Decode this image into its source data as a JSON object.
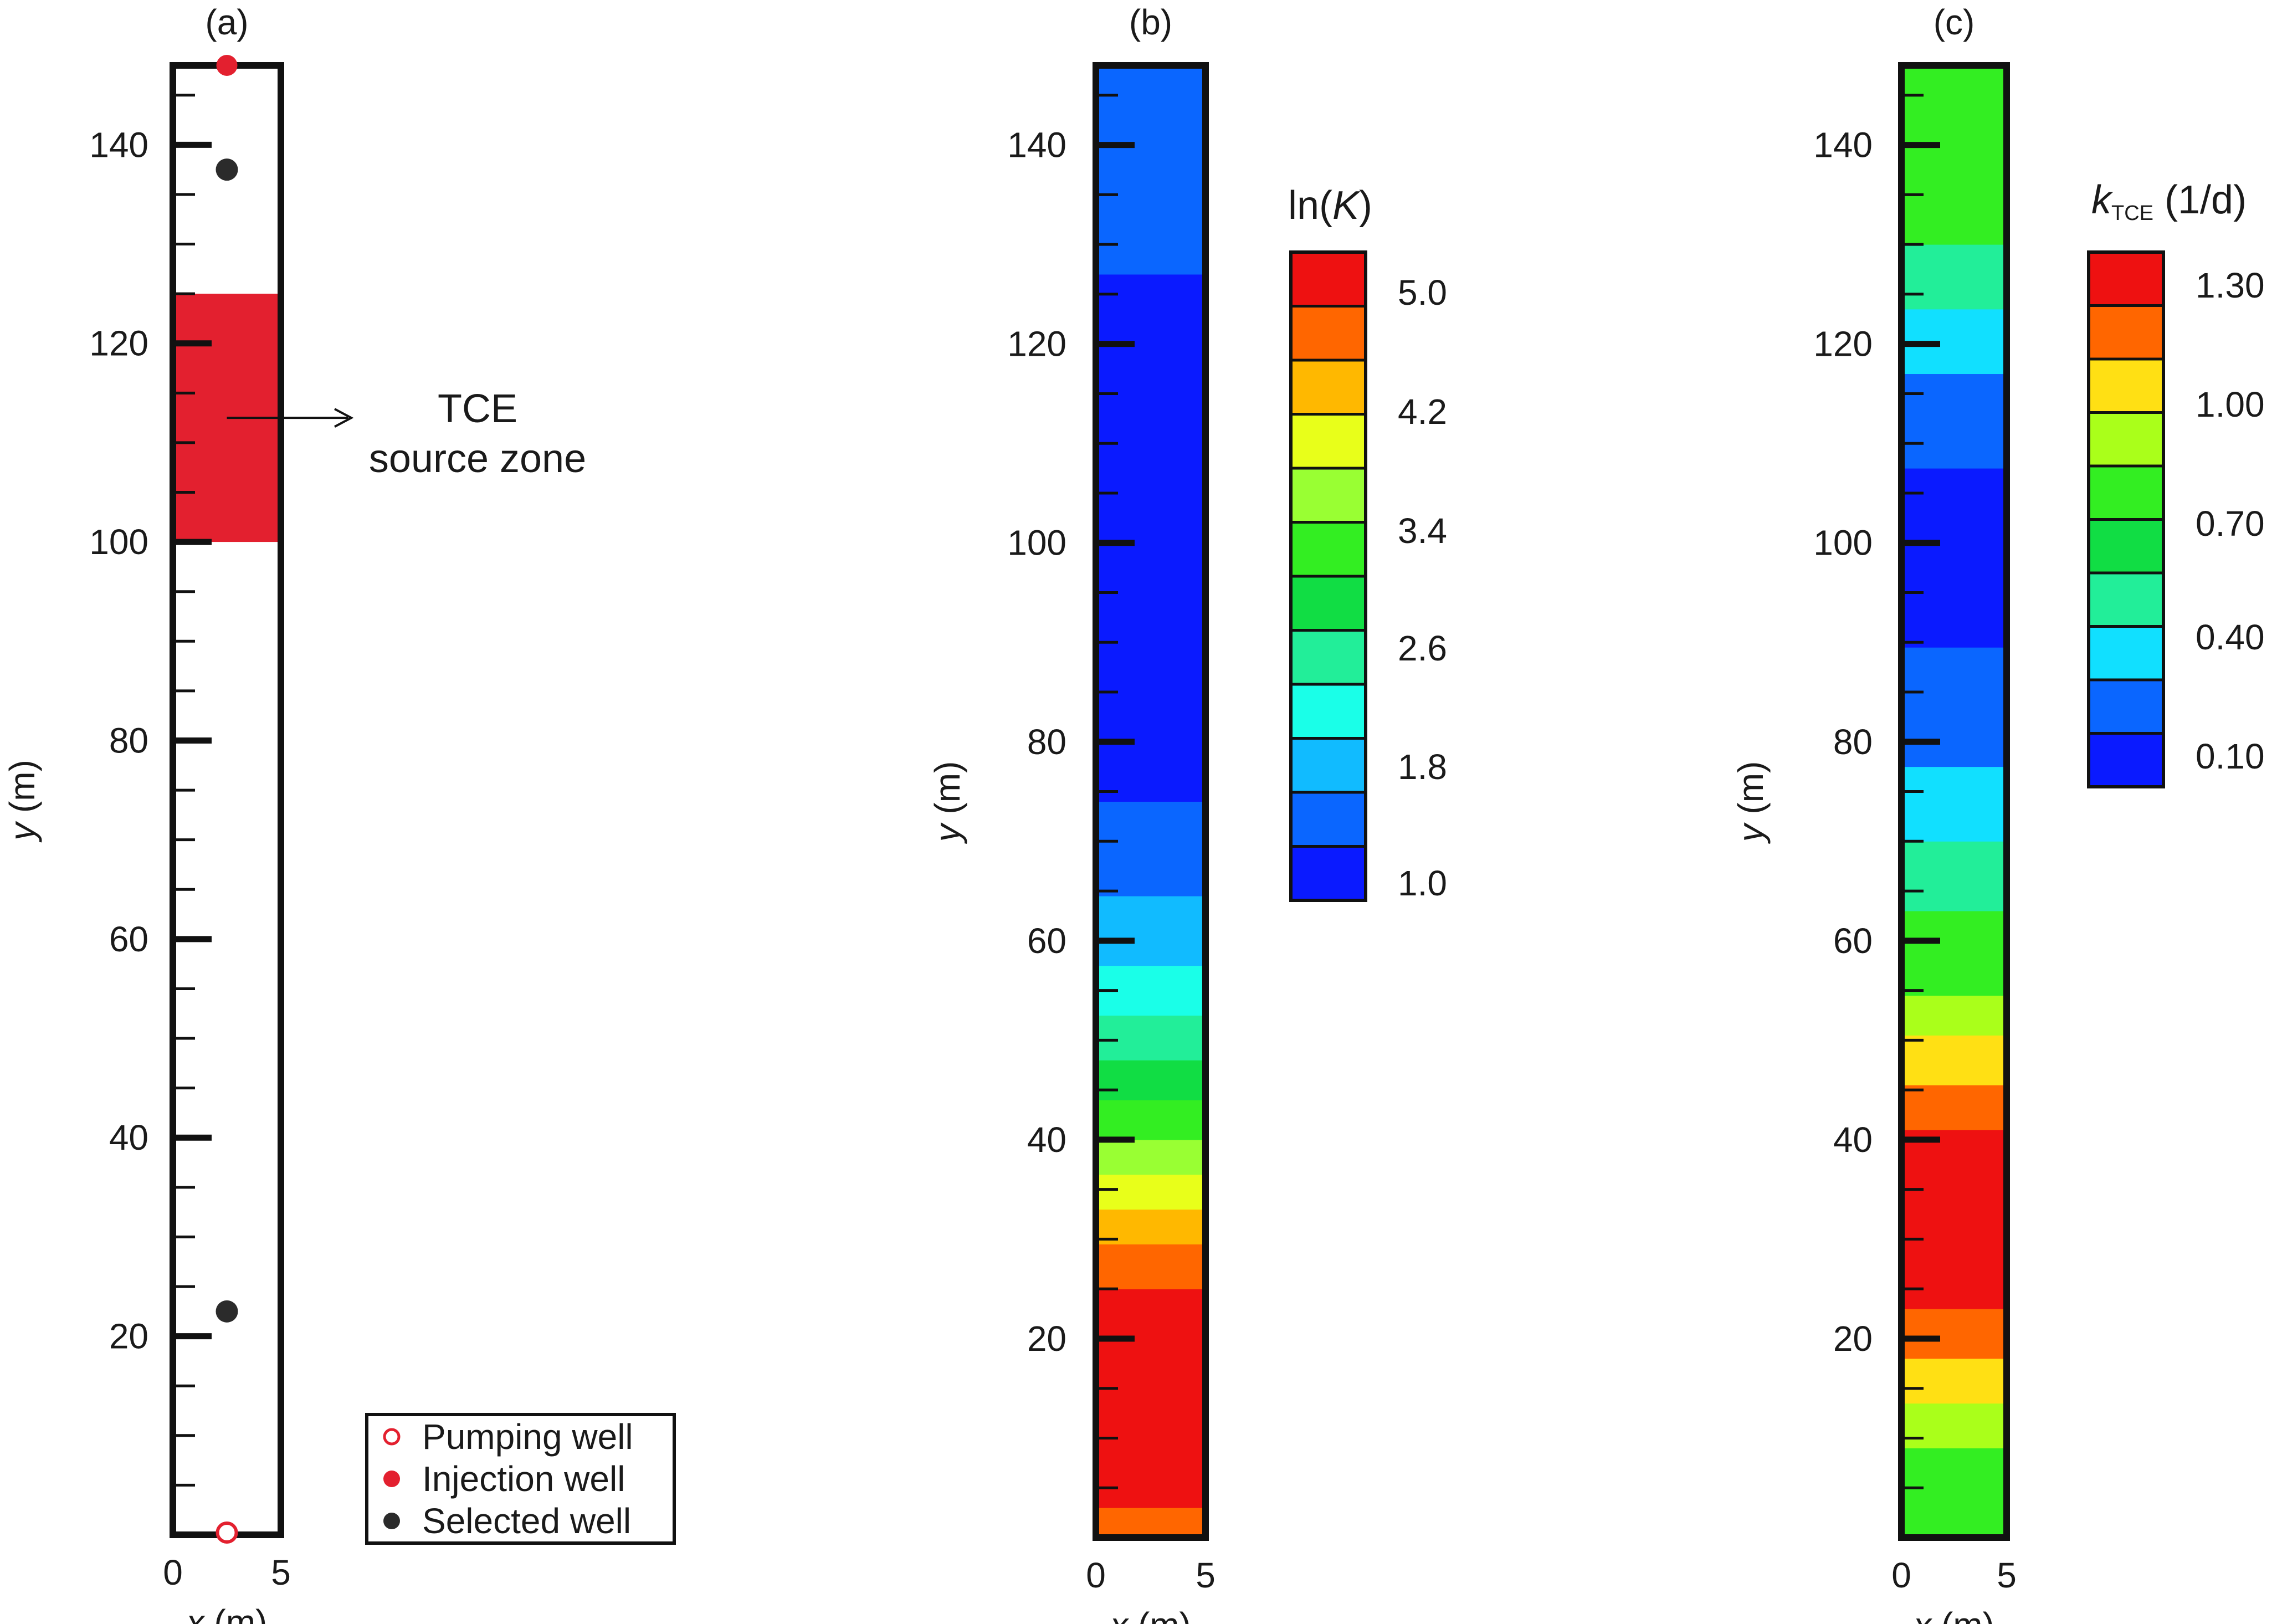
{
  "chart_data": [
    {
      "type": "scatter",
      "panel_label": "(a)",
      "xlabel_var": "x",
      "xlabel_unit": " (m)",
      "ylabel_var": "y",
      "ylabel_unit": " (m)",
      "xlim": [
        0,
        5
      ],
      "ylim": [
        0,
        148
      ],
      "xticks": [
        "0",
        "5"
      ],
      "yticks": [
        "20",
        "40",
        "60",
        "80",
        "100",
        "120",
        "140"
      ],
      "source_zone": {
        "x": [
          0,
          5
        ],
        "y": [
          100,
          125
        ],
        "color": "#e3202f"
      },
      "annotation": {
        "line1": "TCE",
        "line2": "source zone",
        "arrow_to": [
          2.5,
          112.5
        ]
      },
      "wells": [
        {
          "type": "Injection well",
          "x": 2.5,
          "y": 148
        },
        {
          "type": "Selected well",
          "x": 2.5,
          "y": 137.5
        },
        {
          "type": "Selected well",
          "x": 2.5,
          "y": 22.5
        },
        {
          "type": "Pumping well",
          "x": 2.5,
          "y": 0
        }
      ],
      "legend": [
        {
          "label": "Pumping well",
          "marker": "open-circle",
          "color": "#e3202f"
        },
        {
          "label": "Injection well",
          "marker": "filled-circle",
          "color": "#e3202f"
        },
        {
          "label": "Selected well",
          "marker": "filled-circle",
          "color": "#2b2b2b"
        }
      ],
      "legend_position": "bottom-right"
    },
    {
      "type": "heatmap",
      "panel_label": "(b)",
      "xlabel_var": "x",
      "xlabel_unit": " (m)",
      "ylabel_var": "y",
      "ylabel_unit": " (m)",
      "xlim": [
        0,
        5
      ],
      "ylim": [
        0,
        148
      ],
      "xticks": [
        "0",
        "5"
      ],
      "yticks": [
        "20",
        "40",
        "60",
        "80",
        "100",
        "120",
        "140"
      ],
      "colorbar": {
        "title_prefix": "ln(",
        "title_var": "K",
        "title_suffix": ")",
        "tick_labels": [
          "5.0",
          "4.2",
          "3.4",
          "2.6",
          "1.8",
          "1.0"
        ],
        "colors": [
          "#ee1111",
          "#ff6600",
          "#ffb800",
          "#e8ff1a",
          "#99ff33",
          "#33ee22",
          "#11dd44",
          "#22ee99",
          "#1affe8",
          "#11bbff",
          "#0a66ff",
          "#0a1aff"
        ]
      },
      "bands": [
        {
          "y": [
            0,
            3
          ],
          "color": "#ff6600"
        },
        {
          "y": [
            3,
            25
          ],
          "color": "#ee1111"
        },
        {
          "y": [
            25,
            29.5
          ],
          "color": "#ff6600"
        },
        {
          "y": [
            29.5,
            33
          ],
          "color": "#ffb800"
        },
        {
          "y": [
            33,
            36.5
          ],
          "color": "#e8ff1a"
        },
        {
          "y": [
            36.5,
            40
          ],
          "color": "#99ff33"
        },
        {
          "y": [
            40,
            44
          ],
          "color": "#33ee22"
        },
        {
          "y": [
            44,
            48
          ],
          "color": "#11dd44"
        },
        {
          "y": [
            48,
            52.5
          ],
          "color": "#22ee99"
        },
        {
          "y": [
            52.5,
            57.5
          ],
          "color": "#1affe8"
        },
        {
          "y": [
            57.5,
            64.5
          ],
          "color": "#11bbff"
        },
        {
          "y": [
            64.5,
            74
          ],
          "color": "#0a66ff"
        },
        {
          "y": [
            74,
            127
          ],
          "color": "#0a1aff"
        },
        {
          "y": [
            127,
            148
          ],
          "color": "#0a66ff"
        }
      ]
    },
    {
      "type": "heatmap",
      "panel_label": "(c)",
      "xlabel_var": "x",
      "xlabel_unit": " (m)",
      "ylabel_var": "y",
      "ylabel_unit": " (m)",
      "xlim": [
        0,
        5
      ],
      "ylim": [
        0,
        148
      ],
      "xticks": [
        "0",
        "5"
      ],
      "yticks": [
        "20",
        "40",
        "60",
        "80",
        "100",
        "120",
        "140"
      ],
      "colorbar": {
        "title_var": "k",
        "title_sub": "TCE",
        "title_unit": " (1/d)",
        "tick_labels": [
          "1.30",
          "1.00",
          "0.70",
          "0.40",
          "0.10"
        ],
        "colors": [
          "#ee1111",
          "#ff6600",
          "#ffe014",
          "#aaff1a",
          "#33ee22",
          "#11dd44",
          "#22ee99",
          "#11e0ff",
          "#0a66ff",
          "#0a1aff"
        ]
      },
      "bands": [
        {
          "y": [
            0,
            4
          ],
          "color": "#33ee22"
        },
        {
          "y": [
            4,
            9
          ],
          "color": "#33ee22"
        },
        {
          "y": [
            9,
            13.5
          ],
          "color": "#aaff1a"
        },
        {
          "y": [
            13.5,
            18
          ],
          "color": "#ffe014"
        },
        {
          "y": [
            18,
            23
          ],
          "color": "#ff6600"
        },
        {
          "y": [
            23,
            41
          ],
          "color": "#ee1111"
        },
        {
          "y": [
            41,
            45.5
          ],
          "color": "#ff6600"
        },
        {
          "y": [
            45.5,
            50.5
          ],
          "color": "#ffe014"
        },
        {
          "y": [
            50.5,
            54.5
          ],
          "color": "#aaff1a"
        },
        {
          "y": [
            54.5,
            58.5
          ],
          "color": "#33ee22"
        },
        {
          "y": [
            58.5,
            63
          ],
          "color": "#33ee22"
        },
        {
          "y": [
            63,
            70
          ],
          "color": "#22ee99"
        },
        {
          "y": [
            70,
            77.5
          ],
          "color": "#11e0ff"
        },
        {
          "y": [
            77.5,
            89.5
          ],
          "color": "#0a66ff"
        },
        {
          "y": [
            89.5,
            107.5
          ],
          "color": "#0a1aff"
        },
        {
          "y": [
            107.5,
            117
          ],
          "color": "#0a66ff"
        },
        {
          "y": [
            117,
            123.5
          ],
          "color": "#11e0ff"
        },
        {
          "y": [
            123.5,
            130
          ],
          "color": "#22ee99"
        },
        {
          "y": [
            130,
            148
          ],
          "color": "#33ee22"
        }
      ]
    }
  ]
}
